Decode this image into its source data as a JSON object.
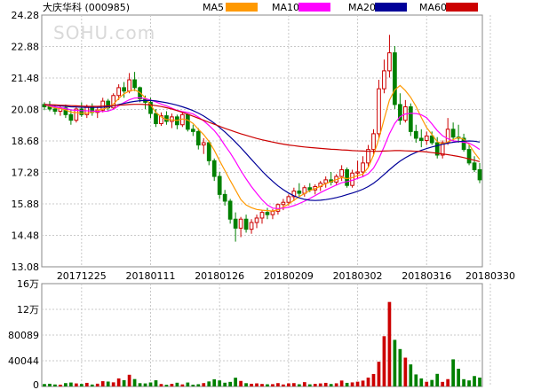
{
  "chart_data": [
    {
      "type": "candlestick",
      "title": "大庆华科 (000985)",
      "watermark": "SOHU.com",
      "legend": [
        {
          "name": "MA5",
          "color": "#ff9900"
        },
        {
          "name": "MA10",
          "color": "#ff00ff"
        },
        {
          "name": "MA20",
          "color": "#000099"
        },
        {
          "name": "MA60",
          "color": "#cc0000"
        }
      ],
      "up_color": "#cc0000",
      "down_color": "#008000",
      "y_ticks": [
        "24.28",
        "22.88",
        "21.48",
        "20.08",
        "18.68",
        "17.28",
        "15.88",
        "14.48",
        "13.08"
      ],
      "ylim": [
        13.08,
        24.28
      ],
      "x_tick_labels": [
        "20171225",
        "20180111",
        "20180126",
        "20180209",
        "20180302",
        "20180316",
        "20180330"
      ],
      "x_tick_index": [
        7,
        20,
        33,
        46,
        59,
        72,
        84
      ],
      "grid": true,
      "ohlc": [
        [
          20.3,
          20.4,
          20.05,
          20.2
        ],
        [
          20.2,
          20.45,
          20.0,
          20.1
        ],
        [
          20.1,
          20.3,
          19.85,
          20.0
        ],
        [
          20.0,
          20.25,
          19.8,
          20.15
        ],
        [
          20.15,
          20.3,
          19.7,
          19.85
        ],
        [
          19.85,
          20.05,
          19.4,
          19.6
        ],
        [
          19.6,
          20.2,
          19.5,
          20.1
        ],
        [
          20.1,
          20.4,
          19.75,
          19.85
        ],
        [
          19.85,
          20.3,
          19.7,
          20.2
        ],
        [
          20.2,
          20.35,
          19.8,
          19.95
        ],
        [
          19.95,
          20.2,
          19.7,
          20.05
        ],
        [
          20.05,
          20.6,
          19.95,
          20.45
        ],
        [
          20.45,
          20.55,
          20.0,
          20.15
        ],
        [
          20.15,
          20.8,
          20.1,
          20.7
        ],
        [
          20.7,
          21.2,
          20.5,
          21.05
        ],
        [
          21.05,
          21.3,
          20.6,
          20.9
        ],
        [
          20.9,
          21.7,
          20.8,
          21.4
        ],
        [
          21.4,
          21.75,
          20.9,
          21.05
        ],
        [
          21.05,
          21.1,
          20.4,
          20.55
        ],
        [
          20.55,
          20.7,
          20.1,
          20.4
        ],
        [
          20.4,
          20.6,
          19.7,
          19.9
        ],
        [
          19.9,
          20.1,
          19.3,
          19.45
        ],
        [
          19.45,
          19.95,
          19.35,
          19.8
        ],
        [
          19.8,
          20.0,
          19.4,
          19.55
        ],
        [
          19.55,
          19.9,
          19.25,
          19.75
        ],
        [
          19.75,
          19.85,
          19.2,
          19.4
        ],
        [
          19.4,
          19.95,
          19.3,
          19.85
        ],
        [
          19.85,
          19.9,
          19.1,
          19.2
        ],
        [
          19.2,
          19.4,
          18.9,
          19.1
        ],
        [
          19.1,
          19.25,
          18.3,
          18.5
        ],
        [
          18.5,
          18.8,
          18.1,
          18.6
        ],
        [
          18.6,
          18.7,
          17.6,
          17.8
        ],
        [
          17.8,
          17.9,
          16.9,
          17.1
        ],
        [
          17.1,
          17.3,
          16.1,
          16.3
        ],
        [
          16.3,
          16.5,
          15.8,
          16.0
        ],
        [
          16.0,
          16.1,
          15.0,
          15.2
        ],
        [
          15.2,
          15.5,
          14.2,
          14.8
        ],
        [
          14.8,
          15.3,
          14.4,
          15.2
        ],
        [
          15.2,
          15.4,
          14.6,
          14.75
        ],
        [
          14.75,
          15.2,
          14.55,
          15.05
        ],
        [
          15.05,
          15.4,
          14.8,
          15.25
        ],
        [
          15.25,
          15.6,
          15.0,
          15.5
        ],
        [
          15.5,
          15.7,
          15.2,
          15.4
        ],
        [
          15.4,
          15.65,
          15.2,
          15.55
        ],
        [
          15.55,
          15.9,
          15.4,
          15.85
        ],
        [
          15.85,
          16.1,
          15.6,
          15.95
        ],
        [
          15.95,
          16.3,
          15.8,
          16.2
        ],
        [
          16.2,
          16.6,
          16.0,
          16.45
        ],
        [
          16.45,
          16.8,
          16.2,
          16.35
        ],
        [
          16.35,
          16.7,
          16.2,
          16.6
        ],
        [
          16.6,
          16.8,
          16.4,
          16.5
        ],
        [
          16.5,
          16.75,
          16.3,
          16.65
        ],
        [
          16.65,
          16.9,
          16.45,
          16.8
        ],
        [
          16.8,
          17.1,
          16.6,
          16.95
        ],
        [
          16.95,
          17.3,
          16.7,
          16.85
        ],
        [
          16.85,
          17.2,
          16.7,
          17.1
        ],
        [
          17.1,
          17.6,
          16.9,
          17.4
        ],
        [
          17.4,
          17.5,
          16.6,
          16.7
        ],
        [
          16.7,
          17.4,
          16.6,
          17.25
        ],
        [
          17.25,
          17.8,
          17.0,
          17.3
        ],
        [
          17.3,
          18.0,
          17.1,
          17.7
        ],
        [
          17.7,
          18.5,
          17.5,
          18.3
        ],
        [
          18.3,
          19.2,
          18.0,
          19.0
        ],
        [
          19.0,
          21.4,
          18.8,
          21.0
        ],
        [
          21.0,
          22.3,
          20.8,
          21.8
        ],
        [
          21.8,
          23.4,
          21.5,
          22.6
        ],
        [
          22.6,
          22.9,
          20.1,
          20.3
        ],
        [
          20.3,
          20.8,
          19.4,
          19.6
        ],
        [
          19.6,
          20.5,
          19.5,
          20.2
        ],
        [
          20.2,
          20.35,
          18.9,
          19.1
        ],
        [
          19.1,
          19.4,
          18.6,
          18.8
        ],
        [
          18.8,
          19.2,
          18.4,
          18.7
        ],
        [
          18.7,
          19.1,
          18.5,
          18.9
        ],
        [
          18.9,
          19.1,
          18.5,
          18.6
        ],
        [
          18.6,
          18.85,
          17.9,
          18.05
        ],
        [
          18.05,
          18.7,
          17.9,
          18.6
        ],
        [
          18.6,
          19.7,
          18.5,
          19.2
        ],
        [
          19.2,
          19.5,
          18.7,
          18.85
        ],
        [
          18.85,
          19.4,
          18.6,
          18.8
        ],
        [
          18.8,
          19.0,
          18.2,
          18.3
        ],
        [
          18.3,
          18.5,
          17.6,
          17.7
        ],
        [
          17.7,
          18.0,
          17.3,
          17.4
        ],
        [
          17.4,
          17.7,
          16.8,
          16.95
        ]
      ],
      "ma_series": [
        {
          "name": "MA5",
          "color": "#ff9900",
          "values": [
            20.3,
            20.22,
            20.15,
            20.11,
            20.06,
            19.96,
            19.94,
            19.91,
            19.92,
            19.95,
            20.04,
            20.1,
            20.16,
            20.32,
            20.57,
            20.78,
            20.9,
            20.95,
            20.83,
            20.6,
            20.28,
            19.94,
            19.75,
            19.63,
            19.62,
            19.59,
            19.66,
            19.61,
            19.46,
            19.2,
            18.96,
            18.66,
            18.26,
            17.8,
            17.36,
            16.92,
            16.5,
            16.07,
            15.83,
            15.71,
            15.63,
            15.6,
            15.58,
            15.56,
            15.62,
            15.74,
            15.87,
            16.04,
            16.2,
            16.34,
            16.47,
            16.56,
            16.66,
            16.78,
            16.87,
            16.96,
            17.05,
            17.0,
            17.05,
            17.14,
            17.2,
            17.5,
            18.05,
            18.78,
            19.64,
            20.5,
            20.95,
            21.15,
            20.92,
            20.62,
            20.22,
            19.72,
            19.27,
            18.97,
            18.65,
            18.55,
            18.64,
            18.74,
            18.83,
            18.75,
            18.52,
            18.16,
            17.85
          ]
        },
        {
          "name": "MA10",
          "color": "#ff00ff",
          "values": [
            20.3,
            20.25,
            20.2,
            20.16,
            20.12,
            20.06,
            20.04,
            20.03,
            20.02,
            20.01,
            20.0,
            19.99,
            20.01,
            20.09,
            20.24,
            20.39,
            20.51,
            20.59,
            20.6,
            20.56,
            20.5,
            20.42,
            20.32,
            20.24,
            20.14,
            20.04,
            19.98,
            19.95,
            19.88,
            19.74,
            19.57,
            19.37,
            19.14,
            18.84,
            18.48,
            18.15,
            17.77,
            17.36,
            16.99,
            16.65,
            16.35,
            16.06,
            15.83,
            15.69,
            15.67,
            15.69,
            15.73,
            15.8,
            15.89,
            16.0,
            16.12,
            16.25,
            16.38,
            16.5,
            16.61,
            16.72,
            16.82,
            16.87,
            16.93,
            17.01,
            17.09,
            17.22,
            17.47,
            17.9,
            18.42,
            19.0,
            19.46,
            19.76,
            19.88,
            19.91,
            19.9,
            19.84,
            19.71,
            19.44,
            19.14,
            18.91,
            18.78,
            18.68,
            18.66,
            18.62,
            18.58,
            18.46,
            18.3
          ]
        },
        {
          "name": "MA20",
          "color": "#000099",
          "values": [
            20.3,
            20.28,
            20.26,
            20.24,
            20.22,
            20.2,
            20.19,
            20.18,
            20.17,
            20.17,
            20.17,
            20.18,
            20.2,
            20.24,
            20.3,
            20.35,
            20.4,
            20.44,
            20.47,
            20.48,
            20.48,
            20.46,
            20.42,
            20.38,
            20.33,
            20.27,
            20.2,
            20.12,
            20.03,
            19.92,
            19.79,
            19.64,
            19.47,
            19.28,
            19.08,
            18.86,
            18.63,
            18.38,
            18.12,
            17.86,
            17.6,
            17.34,
            17.1,
            16.88,
            16.68,
            16.51,
            16.36,
            16.24,
            16.15,
            16.08,
            16.04,
            16.03,
            16.04,
            16.07,
            16.11,
            16.16,
            16.22,
            16.29,
            16.36,
            16.44,
            16.53,
            16.65,
            16.8,
            16.98,
            17.19,
            17.4,
            17.6,
            17.78,
            17.93,
            18.06,
            18.17,
            18.26,
            18.34,
            18.41,
            18.47,
            18.53,
            18.58,
            18.62,
            18.65,
            18.67,
            18.68,
            18.67,
            18.63
          ]
        },
        {
          "name": "MA60",
          "color": "#cc0000",
          "values": [
            20.3,
            20.29,
            20.28,
            20.27,
            20.26,
            20.25,
            20.24,
            20.23,
            20.22,
            20.22,
            20.22,
            20.23,
            20.24,
            20.25,
            20.27,
            20.28,
            20.3,
            20.31,
            20.31,
            20.3,
            20.28,
            20.25,
            20.21,
            20.16,
            20.1,
            20.03,
            19.95,
            19.87,
            19.78,
            19.69,
            19.6,
            19.51,
            19.42,
            19.33,
            19.24,
            19.16,
            19.08,
            19.0,
            18.93,
            18.86,
            18.79,
            18.73,
            18.68,
            18.63,
            18.58,
            18.54,
            18.5,
            18.47,
            18.44,
            18.41,
            18.39,
            18.37,
            18.35,
            18.33,
            18.31,
            18.3,
            18.28,
            18.27,
            18.25,
            18.24,
            18.23,
            18.22,
            18.22,
            18.22,
            18.23,
            18.24,
            18.25,
            18.25,
            18.24,
            18.23,
            18.22,
            18.21,
            18.19,
            18.16,
            18.13,
            18.1,
            18.07,
            18.03,
            17.99,
            17.94,
            17.88,
            17.82,
            17.76
          ]
        }
      ]
    },
    {
      "type": "bar",
      "y_ticks": [
        "16万",
        "12万",
        "80089",
        "40044",
        "0"
      ],
      "ylim": [
        0,
        160000
      ],
      "volume": [
        3800,
        4200,
        3100,
        2800,
        5200,
        6100,
        4700,
        3900,
        5600,
        3000,
        4300,
        8200,
        7600,
        6400,
        12500,
        9800,
        18200,
        11500,
        5100,
        4700,
        6200,
        9600,
        3800,
        2600,
        4100,
        5800,
        3200,
        6100,
        2800,
        3500,
        5200,
        7800,
        11200,
        9400,
        5800,
        7100,
        13600,
        8600,
        5100,
        4200,
        4800,
        3900,
        3400,
        3600,
        5200,
        3100,
        4800,
        5200,
        3400,
        6700,
        3300,
        4100,
        4700,
        5600,
        3800,
        4900,
        9200,
        5600,
        6300,
        7400,
        9100,
        13800,
        19400,
        38500,
        78200,
        131500,
        72500,
        58200,
        44800,
        34300,
        18700,
        12500,
        7300,
        10100,
        19600,
        7100,
        11400,
        42200,
        27600,
        11300,
        9400,
        16200,
        13800
      ],
      "bar_colors": "match_candle"
    }
  ]
}
